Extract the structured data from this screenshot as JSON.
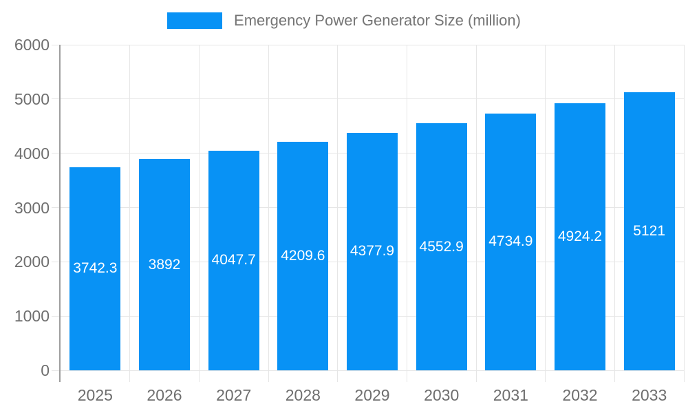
{
  "chart_data": {
    "type": "bar",
    "title": "",
    "legend_label": "Emergency Power Generator Size (million)",
    "legend_position": "top",
    "categories": [
      "2025",
      "2026",
      "2027",
      "2028",
      "2029",
      "2030",
      "2031",
      "2032",
      "2033"
    ],
    "values": [
      3742.3,
      3892,
      4047.7,
      4209.6,
      4377.9,
      4552.9,
      4734.9,
      4924.2,
      5121
    ],
    "value_labels": [
      "3742.3",
      "3892",
      "4047.7",
      "4209.6",
      "4377.9",
      "4552.9",
      "4734.9",
      "4924.2",
      "5121"
    ],
    "xlabel": "",
    "ylabel": "",
    "ylim": [
      0,
      6000
    ],
    "yticks": [
      0,
      1000,
      2000,
      3000,
      4000,
      5000,
      6000
    ],
    "grid": "on",
    "colors": {
      "bar": "#0892f5",
      "axis_text": "#6e6e6e",
      "legend_text": "#757575",
      "gridline": "#e6e6e6",
      "axis_line": "#9e9e9e",
      "value_label_text": "#ffffff",
      "background": "#ffffff"
    }
  }
}
